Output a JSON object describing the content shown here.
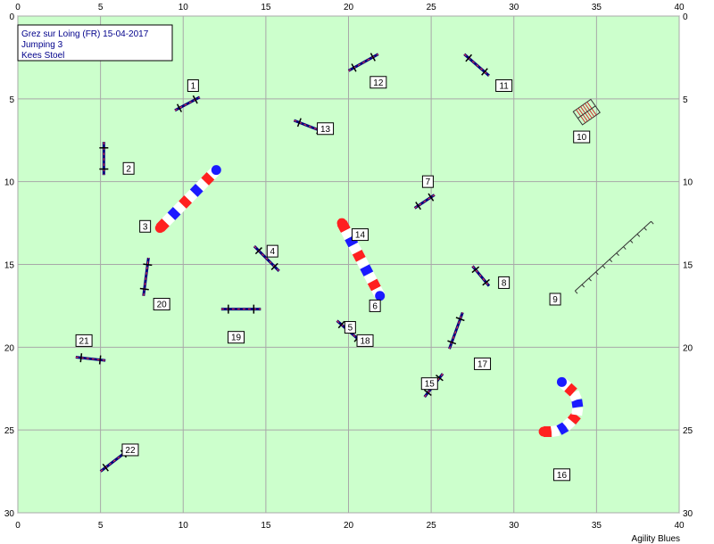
{
  "info": {
    "lines": [
      "Grez sur Loing (FR) 15-04-2017",
      "Jumping 3",
      "Kees Stoel"
    ]
  },
  "credit": "Agility Blues",
  "colors": {
    "field": "#ccffcc",
    "grid": "#a8a8a8",
    "jump_bar": "#000080",
    "tunnel_red": "#ff2020",
    "tunnel_blue": "#1a1aff",
    "tunnel_white": "#ffffff"
  },
  "axes": {
    "x_range": [
      0,
      40
    ],
    "y_range": [
      0,
      30
    ],
    "x_ticks": [
      "0",
      "5",
      "10",
      "15",
      "20",
      "25",
      "30",
      "35",
      "40"
    ],
    "y_ticks": [
      "0",
      "5",
      "10",
      "15",
      "20",
      "25",
      "30"
    ]
  },
  "obstacles": [
    {
      "type": "jump",
      "from": [
        9.5,
        5.7
      ],
      "to": [
        11,
        4.9
      ]
    },
    {
      "type": "jump",
      "from": [
        5.2,
        7.6
      ],
      "to": [
        5.2,
        9.6
      ]
    },
    {
      "type": "tunnel",
      "points": [
        [
          8.6,
          12.8
        ],
        [
          12,
          9.3
        ]
      ]
    },
    {
      "type": "jump",
      "from": [
        14.3,
        13.9
      ],
      "to": [
        15.8,
        15.4
      ]
    },
    {
      "type": "jump",
      "from": [
        19.3,
        18.4
      ],
      "to": [
        20.8,
        19.7
      ]
    },
    {
      "type": "tunnel",
      "points": [
        [
          19.6,
          12.5
        ],
        [
          21.9,
          16.9
        ]
      ]
    },
    {
      "type": "jump",
      "from": [
        24,
        11.6
      ],
      "to": [
        25.2,
        10.8
      ]
    },
    {
      "type": "jump",
      "from": [
        27.5,
        15.1
      ],
      "to": [
        28.5,
        16.3
      ]
    },
    {
      "type": "weave",
      "from": [
        33.7,
        16.6
      ],
      "to": [
        38.3,
        12.4
      ],
      "poles": 12
    },
    {
      "type": "tire",
      "center": [
        34.4,
        5.8
      ]
    },
    {
      "type": "jump",
      "from": [
        27,
        2.3
      ],
      "to": [
        28.5,
        3.6
      ]
    },
    {
      "type": "jump",
      "from": [
        20,
        3.3
      ],
      "to": [
        21.8,
        2.3
      ]
    },
    {
      "type": "jump",
      "from": [
        16.7,
        6.3
      ],
      "to": [
        18.5,
        7.0
      ]
    },
    {
      "type": "jump",
      "from": [
        24.6,
        23
      ],
      "to": [
        25.7,
        21.6
      ]
    },
    {
      "type": "tunnel",
      "points": [
        [
          31.8,
          25.1
        ],
        [
          32.6,
          25.1
        ],
        [
          33.3,
          24.7
        ],
        [
          33.8,
          24.1
        ],
        [
          33.9,
          23.4
        ],
        [
          33.6,
          22.7
        ],
        [
          32.9,
          22.1
        ]
      ]
    },
    {
      "type": "jump",
      "from": [
        26.1,
        20.1
      ],
      "to": [
        26.9,
        17.9
      ]
    },
    {
      "type": "jump",
      "from": [
        7.6,
        16.9
      ],
      "to": [
        7.9,
        14.6
      ]
    },
    {
      "type": "jump",
      "from": [
        12.3,
        17.7
      ],
      "to": [
        14.7,
        17.7
      ]
    },
    {
      "type": "jump",
      "from": [
        3.5,
        20.6
      ],
      "to": [
        5.3,
        20.8
      ]
    },
    {
      "type": "jump",
      "from": [
        5,
        27.5
      ],
      "to": [
        6.7,
        26.2
      ]
    }
  ],
  "labels": [
    {
      "text": "1",
      "pos": [
        10.6,
        4.2
      ]
    },
    {
      "text": "2",
      "pos": [
        6.7,
        9.2
      ]
    },
    {
      "text": "3",
      "pos": [
        7.7,
        12.7
      ]
    },
    {
      "text": "4",
      "pos": [
        15.4,
        14.2
      ]
    },
    {
      "text": "5",
      "pos": [
        20.1,
        18.8
      ]
    },
    {
      "text": "6",
      "pos": [
        21.6,
        17.5
      ]
    },
    {
      "text": "7",
      "pos": [
        24.8,
        10.0
      ]
    },
    {
      "text": "8",
      "pos": [
        29.4,
        16.1
      ]
    },
    {
      "text": "9",
      "pos": [
        32.5,
        17.1
      ]
    },
    {
      "text": "10",
      "pos": [
        34.1,
        7.3
      ]
    },
    {
      "text": "11",
      "pos": [
        29.4,
        4.2
      ]
    },
    {
      "text": "12",
      "pos": [
        21.8,
        4.0
      ]
    },
    {
      "text": "13",
      "pos": [
        18.6,
        6.8
      ]
    },
    {
      "text": "14",
      "pos": [
        20.7,
        13.2
      ]
    },
    {
      "text": "15",
      "pos": [
        24.9,
        22.2
      ]
    },
    {
      "text": "16",
      "pos": [
        32.9,
        27.7
      ]
    },
    {
      "text": "17",
      "pos": [
        28.1,
        21.0
      ]
    },
    {
      "text": "18",
      "pos": [
        21.0,
        19.6
      ]
    },
    {
      "text": "19",
      "pos": [
        13.2,
        19.4
      ]
    },
    {
      "text": "20",
      "pos": [
        8.7,
        17.4
      ]
    },
    {
      "text": "21",
      "pos": [
        4.0,
        19.6
      ]
    },
    {
      "text": "22",
      "pos": [
        6.8,
        26.2
      ]
    }
  ]
}
